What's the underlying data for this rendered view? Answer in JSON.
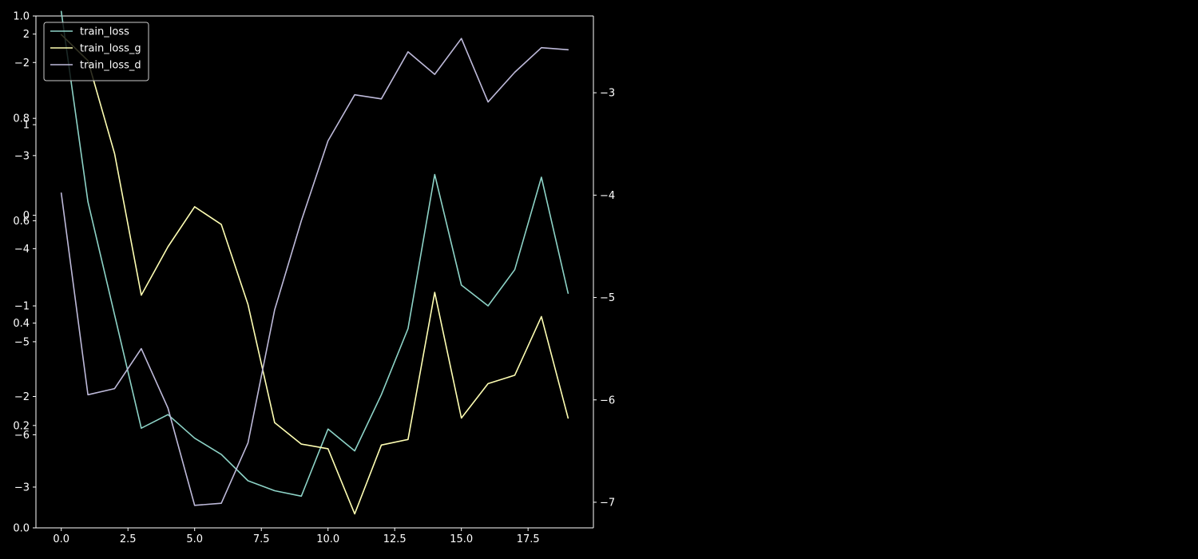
{
  "chart_data": {
    "type": "line",
    "title": "",
    "xlabel": "",
    "ylabel": "",
    "x": [
      0,
      1,
      2,
      3,
      4,
      5,
      6,
      7,
      8,
      9,
      10,
      11,
      12,
      13,
      14,
      15,
      16,
      17,
      18,
      19
    ],
    "xlim": [
      -0.95,
      19.95
    ],
    "x_ticks": [
      0,
      2.5,
      5,
      7.5,
      10,
      12.5,
      15,
      17.5
    ],
    "x_tick_labels": [
      "0.0",
      "2.5",
      "5.0",
      "7.5",
      "10.0",
      "12.5",
      "15.0",
      "17.5"
    ],
    "series": [
      {
        "name": "train_loss",
        "color": "#8dd3c7",
        "axis": "left-inner",
        "ylim": [
          -3.45,
          2.2
        ],
        "y_ticks": [
          -3,
          -2,
          -1,
          0,
          1,
          2
        ],
        "y_tick_labels": [
          "−3",
          "−2",
          "−1",
          "0",
          "1",
          "2"
        ],
        "values": [
          2.25,
          0.15,
          -1.1,
          -2.35,
          -2.2,
          -2.46,
          -2.64,
          -2.93,
          -3.04,
          -3.1,
          -2.36,
          -2.6,
          -1.98,
          -1.25,
          0.45,
          -0.77,
          -1.0,
          -0.6,
          0.42,
          -0.86
        ]
      },
      {
        "name": "train_loss_g",
        "color": "#ffffb3",
        "axis": "left-middle",
        "ylim": [
          -7.0,
          -1.5
        ],
        "y_ticks": [
          -6,
          -5,
          -4,
          -3,
          -2
        ],
        "y_tick_labels": [
          "−6",
          "−5",
          "−4",
          "−3",
          "−2"
        ],
        "values": [
          -1.7,
          -1.98,
          -2.98,
          -4.5,
          -3.98,
          -3.55,
          -3.74,
          -4.6,
          -5.87,
          -6.1,
          -6.15,
          -6.85,
          -6.11,
          -6.05,
          -4.47,
          -5.82,
          -5.45,
          -5.36,
          -4.73,
          -5.82
        ]
      },
      {
        "name": "train_loss_d",
        "color": "#bebada",
        "axis": "right",
        "ylim": [
          -7.25,
          -2.25
        ],
        "y_ticks": [
          -7,
          -6,
          -5,
          -4,
          -3
        ],
        "y_tick_labels": [
          "−7",
          "−6",
          "−5",
          "−4",
          "−3"
        ],
        "values": [
          -3.98,
          -5.95,
          -5.89,
          -5.5,
          -6.08,
          -7.03,
          -7.01,
          -6.42,
          -5.12,
          -4.25,
          -3.47,
          -3.02,
          -3.06,
          -2.6,
          -2.82,
          -2.47,
          -3.09,
          -2.8,
          -2.56,
          -2.58
        ]
      }
    ],
    "outer_left_axis": {
      "ylim": [
        0.0,
        1.0
      ],
      "y_ticks": [
        0.0,
        0.2,
        0.4,
        0.6,
        0.8,
        1.0
      ],
      "y_tick_labels": [
        "0.0",
        "0.2",
        "0.4",
        "0.6",
        "0.8",
        "1.0"
      ]
    },
    "legend_position": "upper-left",
    "grid": false,
    "background": "#000000",
    "axis_color": "#ffffff"
  }
}
